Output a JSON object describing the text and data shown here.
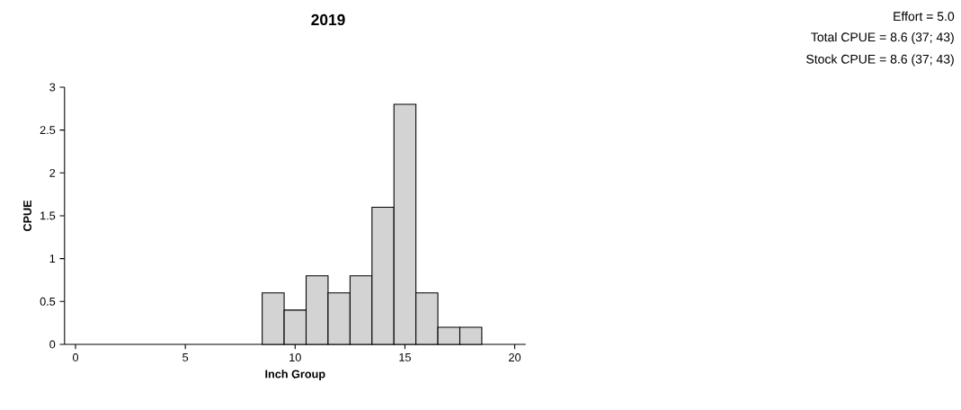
{
  "chart_data": {
    "type": "histogram",
    "title": "2019",
    "xlabel": "Inch Group",
    "ylabel": "CPUE",
    "bins": [
      8.5,
      9.5,
      10.5,
      11.5,
      12.5,
      13.5,
      14.5,
      15.5,
      16.5,
      17.5,
      18.5
    ],
    "values": [
      0.6,
      0.4,
      0.8,
      0.6,
      0.8,
      1.6,
      2.8,
      0.6,
      0.2,
      0.2
    ],
    "color": "#d3d3d3",
    "xlim": [
      -0.5,
      20.5
    ],
    "xticks": [
      0,
      5,
      10,
      15,
      20
    ],
    "ylim": [
      0,
      3
    ],
    "yticks": [
      0,
      0.5,
      1,
      1.5,
      2,
      2.5,
      3
    ],
    "grid": false,
    "annotations": [
      "Effort = 5.0",
      "Total CPUE = 8.6 (37; 43)",
      "Stock CPUE = 8.6 (37; 43)"
    ]
  }
}
